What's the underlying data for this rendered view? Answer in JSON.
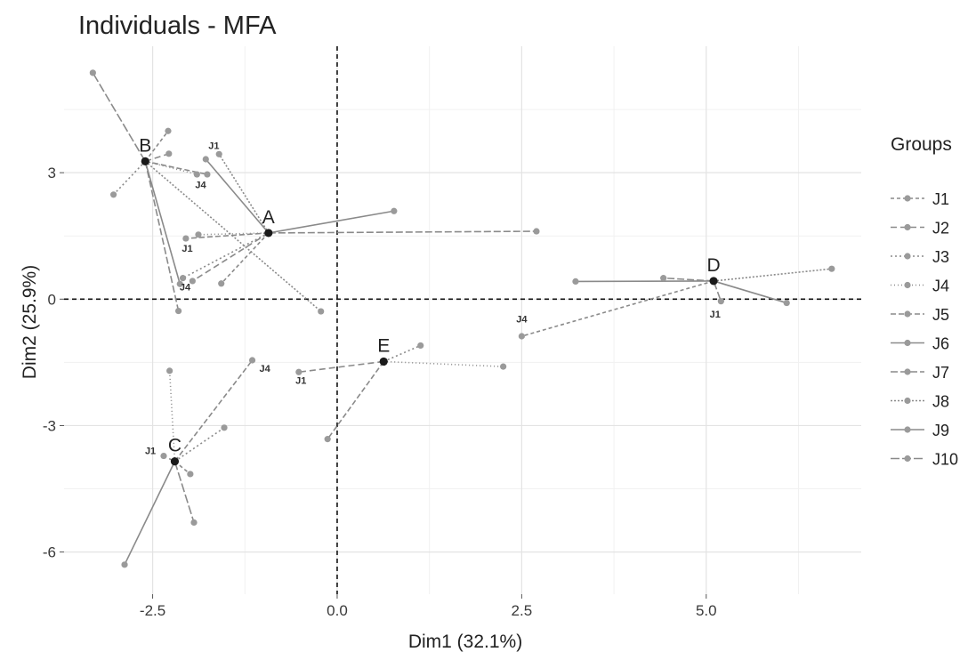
{
  "chart_data": {
    "type": "scatter",
    "title": "Individuals - MFA",
    "xlabel": "Dim1 (32.1%)",
    "ylabel": "Dim2 (25.9%)",
    "xlim": [
      -3.7,
      7.1
    ],
    "ylim": [
      -7.0,
      6.0
    ],
    "x_ticks": [
      {
        "value": -2.5,
        "label": "-2.5"
      },
      {
        "value": 0.0,
        "label": "0.0"
      },
      {
        "value": 2.5,
        "label": "2.5"
      },
      {
        "value": 5.0,
        "label": "5.0"
      }
    ],
    "y_ticks": [
      {
        "value": -6,
        "label": "-6"
      },
      {
        "value": -3,
        "label": "-3"
      },
      {
        "value": 0,
        "label": "0"
      },
      {
        "value": 3,
        "label": "3"
      }
    ],
    "grid": true,
    "reference_lines": {
      "x": 0,
      "y": 0,
      "style": "dashed"
    },
    "legend": {
      "title": "Groups",
      "position": "right",
      "entries": [
        "J1",
        "J2",
        "J3",
        "J4",
        "J5",
        "J6",
        "J7",
        "J8",
        "J9",
        "J10"
      ],
      "dash_styles": [
        "4,3",
        "7,4",
        "2,3",
        "1,3",
        "6,3",
        "none",
        "8,3",
        "2,2",
        "none",
        "10,3"
      ]
    },
    "individuals": [
      {
        "name": "A",
        "x": -0.93,
        "y": 1.57
      },
      {
        "name": "B",
        "x": -2.6,
        "y": 3.27
      },
      {
        "name": "C",
        "x": -2.2,
        "y": -3.85
      },
      {
        "name": "D",
        "x": 5.1,
        "y": 0.43
      },
      {
        "name": "E",
        "x": 0.63,
        "y": -1.48
      }
    ],
    "partial_points": [
      {
        "individual": "A",
        "x": -1.57,
        "y": 0.37
      },
      {
        "individual": "A",
        "x": -1.96,
        "y": 0.43
      },
      {
        "individual": "A",
        "x": -2.09,
        "y": 0.5
      },
      {
        "individual": "A",
        "x": -1.88,
        "y": 1.53
      },
      {
        "individual": "A",
        "x": -2.05,
        "y": 1.44
      },
      {
        "individual": "A",
        "x": 0.77,
        "y": 2.09
      },
      {
        "individual": "A",
        "x": 2.7,
        "y": 1.61
      },
      {
        "individual": "A",
        "x": -1.6,
        "y": 3.44
      },
      {
        "individual": "A",
        "x": -1.78,
        "y": 3.32
      },
      {
        "individual": "B",
        "x": -3.31,
        "y": 5.37
      },
      {
        "individual": "B",
        "x": -2.29,
        "y": 3.99
      },
      {
        "individual": "B",
        "x": -2.28,
        "y": 3.45
      },
      {
        "individual": "B",
        "x": -3.03,
        "y": 2.48
      },
      {
        "individual": "B",
        "x": -1.9,
        "y": 2.96
      },
      {
        "individual": "B",
        "x": -1.76,
        "y": 2.96
      },
      {
        "individual": "B",
        "x": -2.13,
        "y": 0.36
      },
      {
        "individual": "B",
        "x": -2.15,
        "y": -0.28
      },
      {
        "individual": "B",
        "x": -0.22,
        "y": -0.29
      },
      {
        "individual": "C",
        "x": -2.88,
        "y": -6.3
      },
      {
        "individual": "C",
        "x": -1.94,
        "y": -5.3
      },
      {
        "individual": "C",
        "x": -1.99,
        "y": -4.15
      },
      {
        "individual": "C",
        "x": -2.35,
        "y": -3.72
      },
      {
        "individual": "C",
        "x": -1.53,
        "y": -3.05
      },
      {
        "individual": "C",
        "x": -2.27,
        "y": -1.7
      },
      {
        "individual": "C",
        "x": -1.15,
        "y": -1.45
      },
      {
        "individual": "D",
        "x": 3.23,
        "y": 0.42
      },
      {
        "individual": "D",
        "x": 4.42,
        "y": 0.5
      },
      {
        "individual": "D",
        "x": 6.7,
        "y": 0.72
      },
      {
        "individual": "D",
        "x": 6.09,
        "y": -0.09
      },
      {
        "individual": "D",
        "x": 5.2,
        "y": -0.05
      },
      {
        "individual": "D",
        "x": 2.5,
        "y": -0.88
      },
      {
        "individual": "E",
        "x": -0.52,
        "y": -1.73
      },
      {
        "individual": "E",
        "x": 1.13,
        "y": -1.1
      },
      {
        "individual": "E",
        "x": 2.25,
        "y": -1.6
      },
      {
        "individual": "E",
        "x": -0.13,
        "y": -3.32
      }
    ],
    "point_labels": [
      {
        "text": "J1",
        "x": -1.67,
        "y": 3.56
      },
      {
        "text": "J4",
        "x": -1.85,
        "y": 2.63
      },
      {
        "text": "J1",
        "x": -2.03,
        "y": 1.12
      },
      {
        "text": "J4",
        "x": -2.06,
        "y": 0.21
      },
      {
        "text": "J1",
        "x": 5.12,
        "y": -0.44
      },
      {
        "text": "J4",
        "x": 2.5,
        "y": -0.55
      },
      {
        "text": "J4",
        "x": -0.98,
        "y": -1.72
      },
      {
        "text": "J1",
        "x": -0.49,
        "y": -2.01
      },
      {
        "text": "J1",
        "x": -2.53,
        "y": -3.68
      }
    ]
  }
}
